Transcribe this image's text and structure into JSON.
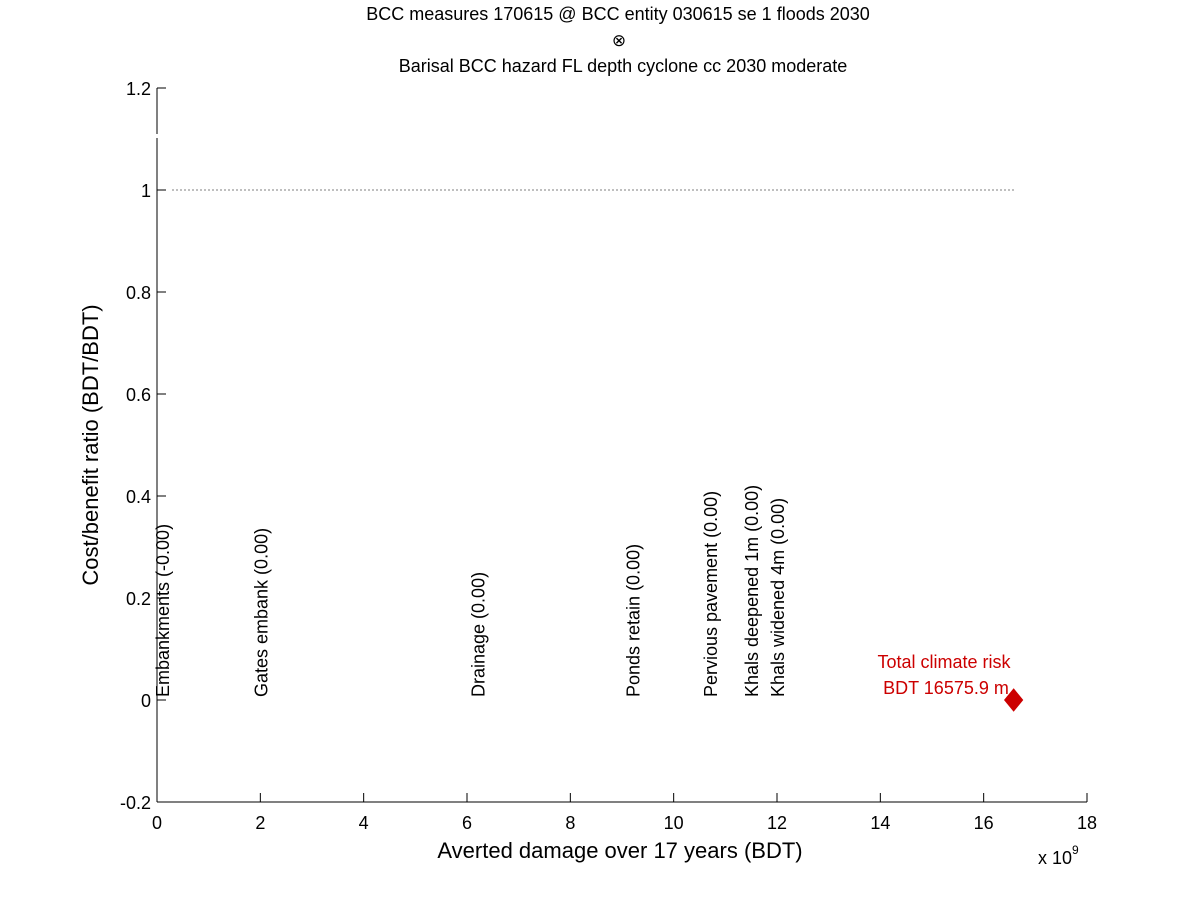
{
  "chart_data": {
    "type": "scatter",
    "title_line1": "BCC measures 170615 @ BCC entity 030615 se 1 floods 2030",
    "title_symbol": "⊗",
    "title_line2": "Barisal BCC hazard FL depth cyclone cc 2030 moderate",
    "xlabel": "Averted damage over 17 years (BDT)",
    "ylabel": "Cost/benefit ratio (BDT/BDT)",
    "x_exponent": "x 10",
    "x_exponent_power": "9",
    "xlim": [
      0,
      18
    ],
    "ylim": [
      -0.2,
      1.2
    ],
    "x_ticks": [
      0,
      2,
      4,
      6,
      8,
      10,
      12,
      14,
      16,
      18
    ],
    "x_tick_labels": [
      "0",
      "2",
      "4",
      "6",
      "8",
      "10",
      "12",
      "14",
      "16",
      "18"
    ],
    "y_ticks": [
      -0.2,
      0,
      0.2,
      0.4,
      0.6,
      0.8,
      1,
      1.2
    ],
    "y_tick_labels": [
      "-0.2",
      "0",
      "0.2",
      "0.4",
      "0.6",
      "0.8",
      "1",
      "1.2"
    ],
    "reference_line": {
      "y": 1,
      "x_range": [
        0.3,
        16.6
      ],
      "style": "dotted"
    },
    "grid": false,
    "measures": [
      {
        "label": "Embankments  (-0.00)",
        "x": 0.1,
        "y": 0
      },
      {
        "label": "Gates embank  (0.00)",
        "x": 2.0,
        "y": 0
      },
      {
        "label": "Drainage  (0.00)",
        "x": 6.2,
        "y": 0
      },
      {
        "label": "Ponds retain  (0.00)",
        "x": 9.2,
        "y": 0
      },
      {
        "label": "Pervious pavement  (0.00)",
        "x": 10.7,
        "y": 0
      },
      {
        "label": "Khals deepened 1m  (0.00)",
        "x": 11.5,
        "y": 0
      },
      {
        "label": "Khals widened 4m  (0.00)",
        "x": 12.0,
        "y": 0
      }
    ],
    "total_risk": {
      "line1": "Total climate risk",
      "line2": "BDT 16575.9 m",
      "x": 16.58,
      "y": 0,
      "color": "#cc0000"
    }
  }
}
